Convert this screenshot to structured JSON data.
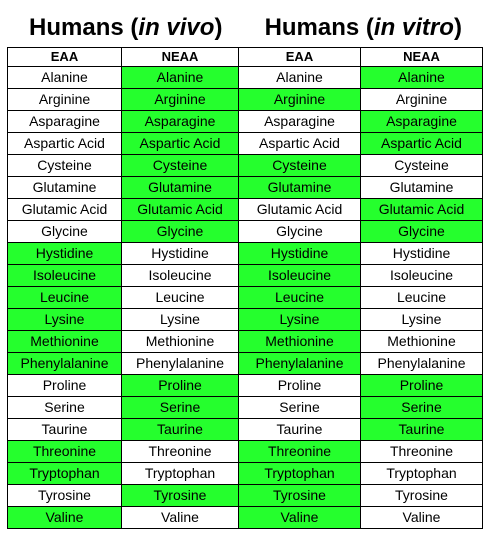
{
  "titles": [
    {
      "main": "Humans",
      "open": " (",
      "qualifier": "in vivo",
      "close": ")"
    },
    {
      "main": "Humans",
      "open": " (",
      "qualifier": "in vitro",
      "close": ")"
    }
  ],
  "headers": [
    "EAA",
    "NEAA",
    "EAA",
    "NEAA"
  ],
  "highlight_color": "#25ff2d",
  "rows": [
    {
      "name": "Alanine",
      "flags": [
        false,
        true,
        false,
        true
      ]
    },
    {
      "name": "Arginine",
      "flags": [
        false,
        true,
        true,
        false
      ]
    },
    {
      "name": "Asparagine",
      "flags": [
        false,
        true,
        false,
        true
      ]
    },
    {
      "name": "Aspartic Acid",
      "flags": [
        false,
        true,
        false,
        true
      ]
    },
    {
      "name": "Cysteine",
      "flags": [
        false,
        true,
        true,
        false
      ]
    },
    {
      "name": "Glutamine",
      "flags": [
        false,
        true,
        true,
        false
      ]
    },
    {
      "name": "Glutamic Acid",
      "flags": [
        false,
        true,
        false,
        true
      ]
    },
    {
      "name": "Glycine",
      "flags": [
        false,
        true,
        false,
        true
      ]
    },
    {
      "name": "Hystidine",
      "flags": [
        true,
        false,
        true,
        false
      ]
    },
    {
      "name": "Isoleucine",
      "flags": [
        true,
        false,
        true,
        false
      ]
    },
    {
      "name": "Leucine",
      "flags": [
        true,
        false,
        true,
        false
      ]
    },
    {
      "name": "Lysine",
      "flags": [
        true,
        false,
        true,
        false
      ]
    },
    {
      "name": "Methionine",
      "flags": [
        true,
        false,
        true,
        false
      ]
    },
    {
      "name": "Phenylalanine",
      "flags": [
        true,
        false,
        true,
        false
      ]
    },
    {
      "name": "Proline",
      "flags": [
        false,
        true,
        false,
        true
      ]
    },
    {
      "name": "Serine",
      "flags": [
        false,
        true,
        false,
        true
      ]
    },
    {
      "name": "Taurine",
      "flags": [
        false,
        true,
        false,
        true
      ]
    },
    {
      "name": "Threonine",
      "flags": [
        true,
        false,
        true,
        false
      ]
    },
    {
      "name": "Tryptophan",
      "flags": [
        true,
        false,
        true,
        false
      ]
    },
    {
      "name": "Tyrosine",
      "flags": [
        false,
        true,
        true,
        false
      ]
    },
    {
      "name": "Valine",
      "flags": [
        true,
        false,
        true,
        false
      ]
    }
  ]
}
